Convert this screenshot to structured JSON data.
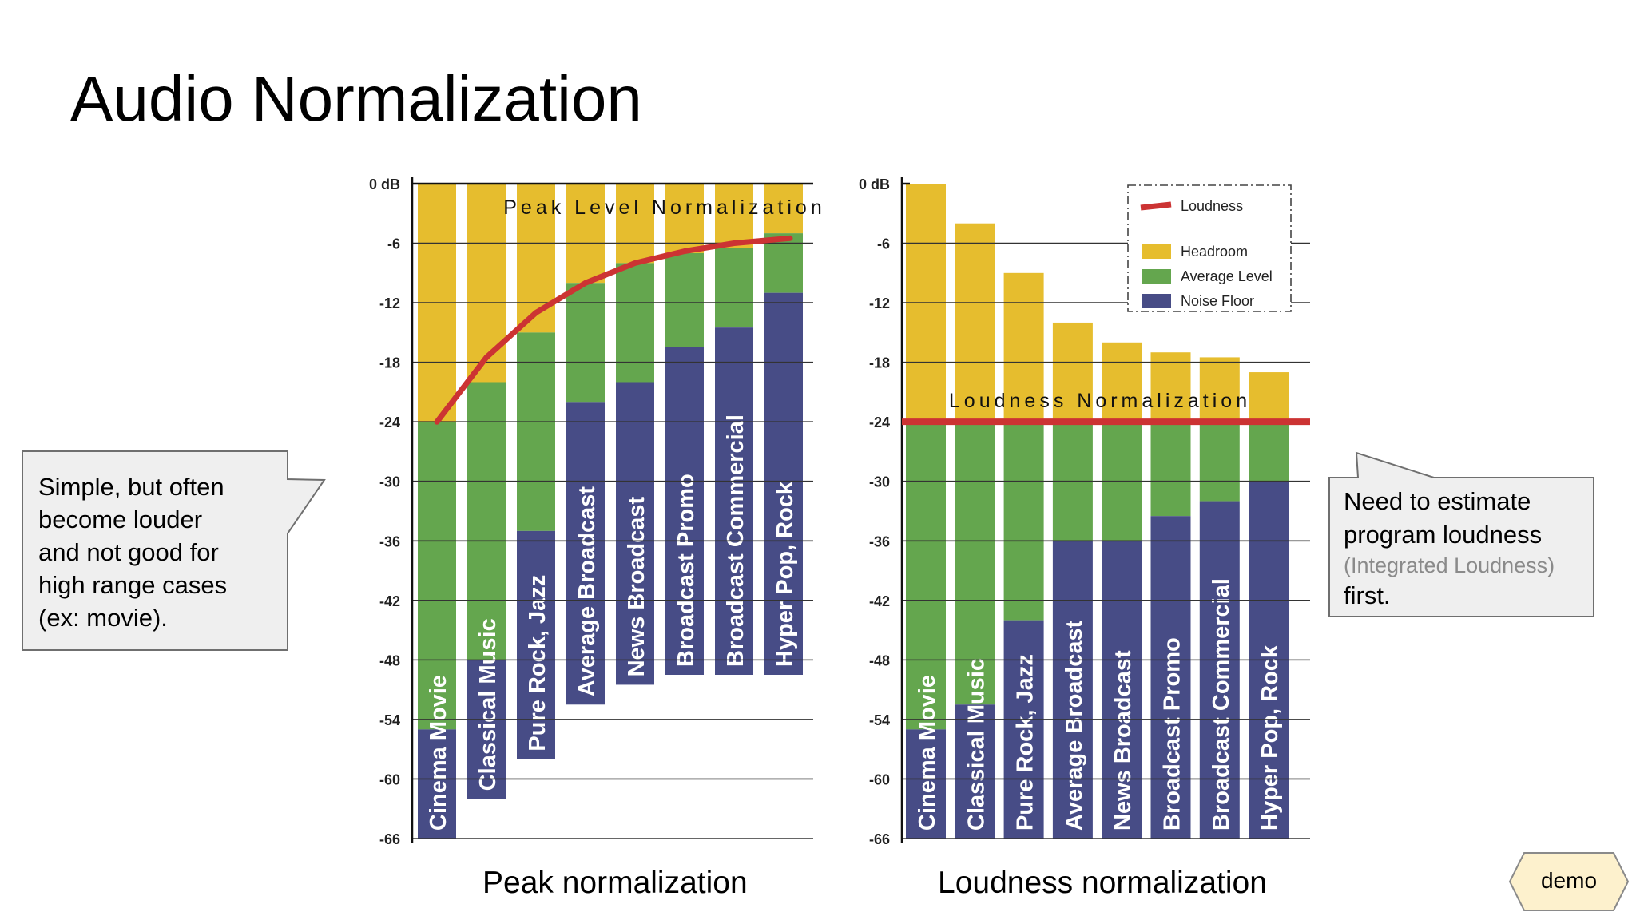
{
  "slide": {
    "title": "Audio Normalization",
    "left_callout": [
      "Simple, but often",
      "become louder",
      "and not good for",
      "high range cases",
      "(ex: movie)."
    ],
    "right_callout": {
      "line1": "Need to estimate",
      "line2": "program loudness",
      "line3": "(Integrated Loudness)",
      "line4": "first."
    },
    "demo_button": "demo"
  },
  "colors": {
    "headroom": "#e6bd2e",
    "average": "#64a64e",
    "noise": "#474c86",
    "loudness_line": "#cc3333",
    "callout_bg": "#efefef"
  },
  "chart_data": [
    {
      "type": "bar",
      "subtype": "stacked",
      "caption": "Peak normalization",
      "inner_title": "Peak Level Normalization",
      "y_ticks": [
        "0 dB",
        "-6",
        "-12",
        "-18",
        "-24",
        "-30",
        "-36",
        "-42",
        "-48",
        "-54",
        "-60",
        "-66"
      ],
      "ylim": [
        -66,
        0
      ],
      "categories": [
        "Cinema Movie",
        "Classical Music",
        "Pure Rock, Jazz",
        "Average Broadcast",
        "News Broadcast",
        "Broadcast Promo",
        "Broadcast  Commercial",
        "Hyper Pop, Rock"
      ],
      "bar_top": [
        0,
        0,
        0,
        0,
        0,
        0,
        0,
        0
      ],
      "average_top": [
        -24,
        -20,
        -15,
        -10,
        -8,
        -7,
        -6.5,
        -5
      ],
      "noise_top": [
        -55,
        -48,
        -35,
        -22,
        -20,
        -16.5,
        -14.5,
        -11
      ],
      "bar_bottom": [
        -66,
        -62,
        -58,
        -52.5,
        -50.5,
        -49.5,
        -49.5,
        -49.5
      ],
      "series": [
        {
          "name": "Headroom",
          "color": "headroom"
        },
        {
          "name": "Average Level",
          "color": "average"
        },
        {
          "name": "Noise Floor",
          "color": "noise"
        }
      ],
      "loudness_curve": [
        -24,
        -17.5,
        -13,
        -10,
        -8,
        -6.8,
        -6,
        -5.5
      ]
    },
    {
      "type": "bar",
      "subtype": "stacked",
      "caption": "Loudness normalization",
      "inner_title": "Loudness Normalization",
      "y_ticks": [
        "0 dB",
        "-6",
        "-12",
        "-18",
        "-24",
        "-30",
        "-36",
        "-42",
        "-48",
        "-54",
        "-60",
        "-66"
      ],
      "ylim": [
        -66,
        0
      ],
      "categories": [
        "Cinema Movie",
        "Classical Music",
        "Pure Rock, Jazz",
        "Average Broadcast",
        "News Broadcast",
        "Broadcast Promo",
        "Broadcast  Commercial",
        "Hyper Pop, Rock"
      ],
      "bar_top": [
        0,
        -4,
        -9,
        -14,
        -16,
        -17,
        -17.5,
        -19
      ],
      "average_top": [
        -24,
        -24,
        -24,
        -24,
        -24,
        -24,
        -24,
        -24
      ],
      "noise_top": [
        -55,
        -52.5,
        -44,
        -36,
        -36,
        -33.5,
        -32,
        -30
      ],
      "bar_bottom": [
        -66,
        -66,
        -66,
        -66,
        -66,
        -66,
        -66,
        -66
      ],
      "loudness_level": -24,
      "legend": {
        "placement": "top-right",
        "items": [
          {
            "label": "Loudness",
            "color": "loudness_line",
            "kind": "line"
          },
          {
            "label": "Headroom",
            "color": "headroom",
            "kind": "box"
          },
          {
            "label": "Average Level",
            "color": "average",
            "kind": "box"
          },
          {
            "label": "Noise Floor",
            "color": "noise",
            "kind": "box"
          }
        ]
      }
    }
  ]
}
